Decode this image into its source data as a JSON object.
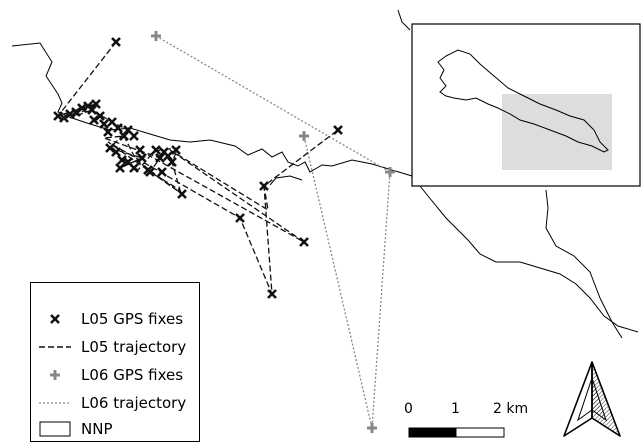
{
  "legend": {
    "items": [
      {
        "label": "L05 GPS fixes",
        "symbol": "x-marker-icon",
        "color": "#111111"
      },
      {
        "label": "L05 trajectory",
        "symbol": "dashed-line-icon",
        "color": "#111111"
      },
      {
        "label": "L06 GPS fixes",
        "symbol": "plus-marker-icon",
        "color": "#888888"
      },
      {
        "label": "L06 trajectory",
        "symbol": "dotted-line-icon",
        "color": "#888888"
      },
      {
        "label": "NNP",
        "symbol": "polygon-outline-icon",
        "color": "#000000"
      }
    ]
  },
  "scale_bar": {
    "labels": [
      "0",
      "1",
      "2 km"
    ]
  },
  "north_arrow": {
    "icon": "north-arrow-icon"
  },
  "inset_map": {
    "icon": "overview-inset",
    "highlight_color": "#dddddd"
  },
  "colors": {
    "l05": "#111111",
    "l06": "#888888",
    "boundary": "#000000"
  }
}
